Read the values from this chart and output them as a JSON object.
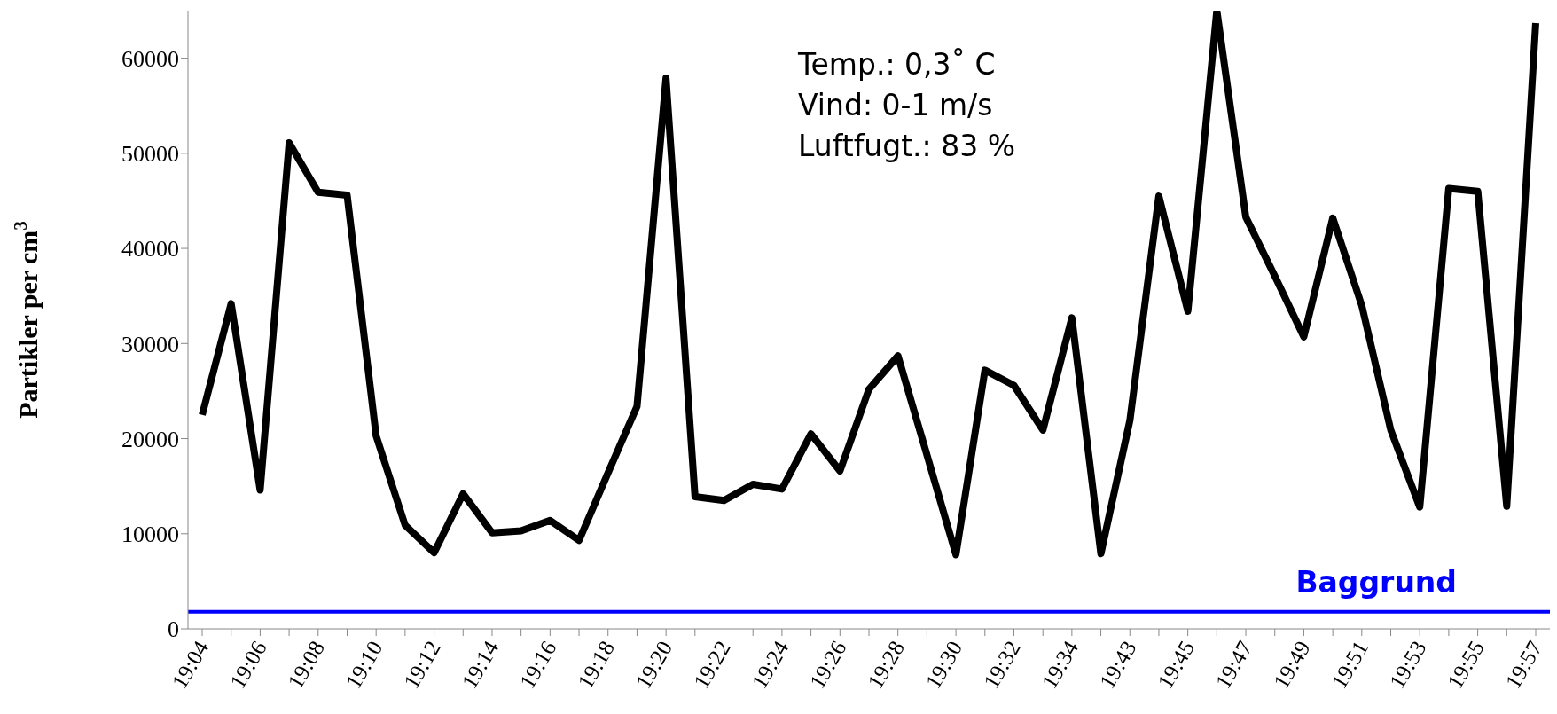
{
  "chart_data": {
    "type": "line",
    "ylabel": "Partikler per cm$^{3}$",
    "categories": [
      "19:04",
      null,
      "19:06",
      null,
      "19:08",
      null,
      "19:10",
      null,
      "19:12",
      null,
      "19:14",
      null,
      "19:16",
      null,
      "19:18",
      null,
      "19:20",
      null,
      "19:22",
      null,
      "19:24",
      null,
      "19:26",
      null,
      "19:28",
      null,
      "19:30",
      null,
      "19:32",
      null,
      "19:34",
      null,
      "19:43",
      null,
      "19:45",
      null,
      "19:47",
      null,
      "19:49",
      null,
      "19:51",
      null,
      "19:53",
      null,
      "19:55",
      null,
      "19:57"
    ],
    "series": [
      {
        "color": "#000000",
        "values": [
          22500,
          34200,
          14600,
          51100,
          45900,
          45600,
          20300,
          10900,
          8000,
          14200,
          10100,
          10300,
          11400,
          9300,
          16400,
          23400,
          57900,
          13900,
          13500,
          15200,
          14700,
          20500,
          16600,
          25200,
          28700,
          18300,
          7800,
          27200,
          25600,
          20900,
          32700,
          7900,
          21900,
          45500,
          33400,
          65000,
          43300,
          37100,
          30700,
          43200,
          34000,
          20900,
          12800,
          46300,
          46000,
          12900,
          63700
        ]
      }
    ],
    "ylim": [
      0,
      65000
    ],
    "yticks": [
      0,
      10000,
      20000,
      30000,
      40000,
      50000,
      60000
    ],
    "grid": false,
    "legend": false,
    "marker": "none",
    "line_style": "solid",
    "ref_lines": [
      {
        "axis": "y",
        "value": 1800,
        "label": "Baggrund",
        "color": "#0000ff"
      }
    ],
    "annotations": [
      "Temp.: 0,3˚ C",
      "Vind: 0-1 m/s",
      "Luftfugt.: 83 %"
    ]
  }
}
